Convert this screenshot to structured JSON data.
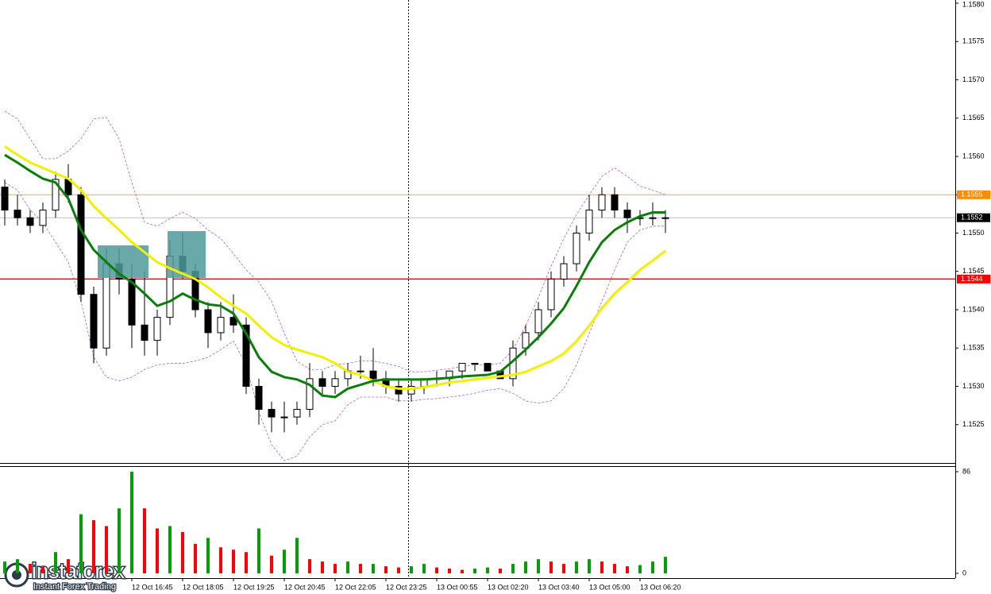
{
  "chart_data": {
    "type": "candlestick",
    "categories": [
      null,
      null,
      null,
      null,
      null,
      null,
      null,
      null,
      null,
      null,
      "12 Oct 16:45",
      null,
      null,
      null,
      "12 Oct 18:05",
      null,
      null,
      null,
      "12 Oct 19:25",
      null,
      null,
      null,
      "12 Oct 20:45",
      null,
      null,
      null,
      "12 Oct 22:05",
      null,
      null,
      null,
      "12 Oct 23:25",
      null,
      null,
      null,
      "13 Oct 00:55",
      null,
      null,
      null,
      "13 Oct 02:20",
      null,
      null,
      null,
      "13 Oct 03:40",
      null,
      null,
      null,
      "13 Oct 05:00",
      null,
      null,
      null,
      "13 Oct 06:20",
      null,
      null
    ],
    "open": [
      1.1556,
      1.1553,
      1.1552,
      1.1551,
      1.1553,
      1.1557,
      1.1555,
      1.1542,
      1.1535,
      1.1546,
      1.1544,
      1.1538,
      1.1536,
      1.1539,
      1.1547,
      1.1545,
      1.154,
      1.1537,
      1.1539,
      1.1538,
      1.153,
      1.1527,
      1.1526,
      1.1526,
      1.1527,
      1.1531,
      1.153,
      1.1531,
      1.1532,
      1.1532,
      1.1531,
      1.153,
      1.1529,
      1.153,
      1.1531,
      1.1531,
      1.1532,
      1.1533,
      1.1533,
      1.1532,
      1.1531,
      1.1535,
      1.1537,
      1.154,
      1.1544,
      1.1546,
      1.155,
      1.1553,
      1.1555,
      1.1553,
      1.1552,
      1.1552,
      1.1552
    ],
    "high": [
      1.1557,
      1.1555,
      1.1553,
      1.1554,
      1.1558,
      1.1559,
      1.1556,
      1.1543,
      1.1548,
      1.1548,
      1.1546,
      1.1545,
      1.154,
      1.1549,
      1.155,
      1.1546,
      1.1541,
      1.1541,
      1.1542,
      1.1539,
      1.1531,
      1.1528,
      1.1528,
      1.1528,
      1.1533,
      1.1532,
      1.1532,
      1.1533,
      1.1534,
      1.1535,
      1.1532,
      1.1531,
      1.1531,
      1.1531,
      1.1532,
      1.1532,
      1.1533,
      1.1533,
      1.1533,
      1.1532,
      1.1536,
      1.1538,
      1.1541,
      1.1545,
      1.1547,
      1.1551,
      1.1555,
      1.1556,
      1.1556,
      1.1554,
      1.1553,
      1.1554,
      1.1553
    ],
    "low": [
      1.1551,
      1.1551,
      1.155,
      1.155,
      1.1552,
      1.1554,
      1.1541,
      1.1533,
      1.1534,
      1.1542,
      1.1535,
      1.1534,
      1.1534,
      1.1538,
      1.1544,
      1.1539,
      1.1535,
      1.1536,
      1.1537,
      1.1529,
      1.1525,
      1.1524,
      1.1524,
      1.1525,
      1.1526,
      1.1529,
      1.1529,
      1.153,
      1.1531,
      1.153,
      1.1529,
      1.1528,
      1.1528,
      1.1529,
      1.153,
      1.153,
      1.1531,
      1.1532,
      1.1532,
      1.1531,
      1.153,
      1.1534,
      1.1536,
      1.1539,
      1.1543,
      1.1545,
      1.1549,
      1.1552,
      1.1552,
      1.155,
      1.1551,
      1.1551,
      1.155
    ],
    "close": [
      1.1553,
      1.1552,
      1.1551,
      1.1553,
      1.1557,
      1.1555,
      1.1542,
      1.1535,
      1.1546,
      1.1544,
      1.1538,
      1.1536,
      1.1539,
      1.1547,
      1.1545,
      1.154,
      1.1537,
      1.1539,
      1.1538,
      1.153,
      1.1527,
      1.1526,
      1.1526,
      1.1527,
      1.1531,
      1.153,
      1.1531,
      1.1532,
      1.1532,
      1.1531,
      1.153,
      1.1529,
      1.153,
      1.1531,
      1.1531,
      1.1532,
      1.1533,
      1.1533,
      1.1532,
      1.1531,
      1.1535,
      1.1537,
      1.154,
      1.1544,
      1.1546,
      1.155,
      1.1553,
      1.1555,
      1.1553,
      1.1552,
      1.1552,
      1.1552,
      1.1552
    ],
    "up_fill": "#ffffff",
    "down_fill": "#000000",
    "candle_stroke": "#000000",
    "lines": [
      {
        "color": "#b060d0",
        "dashed": true,
        "width": 0.8,
        "values": [
          1.15659,
          1.15649,
          1.15623,
          1.15597,
          1.15597,
          1.15607,
          1.15623,
          1.15649,
          1.15651,
          1.15623,
          1.15566,
          1.15514,
          1.15509,
          1.15519,
          1.15527,
          1.15519,
          1.15504,
          1.15493,
          1.15473,
          1.15452,
          1.15436,
          1.15411,
          1.15369,
          1.15333,
          1.15322,
          1.15322,
          1.15328,
          1.1533,
          1.15333,
          1.15333,
          1.1533,
          1.15326,
          1.15319,
          1.15319,
          1.15321,
          1.15323,
          1.15326,
          1.15328,
          1.15328,
          1.1533,
          1.15348,
          1.15379,
          1.15416,
          1.15457,
          1.15493,
          1.15524,
          1.1555,
          1.15574,
          1.15585,
          1.15574,
          1.15561,
          1.15556,
          1.1555
        ]
      },
      {
        "color": "#b060d0",
        "dashed": true,
        "width": 0.8,
        "values": [
          1.15566,
          1.15556,
          1.1553,
          1.15514,
          1.15488,
          1.15462,
          1.15411,
          1.15338,
          1.15312,
          1.15307,
          1.15312,
          1.15322,
          1.15328,
          1.1533,
          1.1533,
          1.15333,
          1.15338,
          1.15348,
          1.15359,
          1.15328,
          1.15266,
          1.15224,
          1.15203,
          1.15209,
          1.15234,
          1.1525,
          1.15255,
          1.15276,
          1.15286,
          1.15286,
          1.15286,
          1.15281,
          1.15281,
          1.15283,
          1.15284,
          1.15286,
          1.15288,
          1.15291,
          1.15295,
          1.15297,
          1.15291,
          1.15281,
          1.15278,
          1.15281,
          1.15297,
          1.15328,
          1.15369,
          1.15411,
          1.15452,
          1.15488,
          1.15504,
          1.15509,
          1.15509
        ]
      },
      {
        "color": "#f0f000",
        "dashed": false,
        "width": 3,
        "values": [
          1.15613,
          1.15602,
          1.15592,
          1.15585,
          1.15578,
          1.15571,
          1.15556,
          1.15535,
          1.15519,
          1.15504,
          1.15488,
          1.15475,
          1.15462,
          1.15454,
          1.15447,
          1.1544,
          1.15429,
          1.15416,
          1.15405,
          1.15395,
          1.15379,
          1.15364,
          1.15354,
          1.15348,
          1.15343,
          1.15338,
          1.1533,
          1.15319,
          1.15315,
          1.15307,
          1.153,
          1.15297,
          1.15297,
          1.15299,
          1.15302,
          1.15305,
          1.15307,
          1.15309,
          1.15311,
          1.15313,
          1.15315,
          1.15319,
          1.15326,
          1.15333,
          1.15343,
          1.15359,
          1.15379,
          1.15402,
          1.15421,
          1.15436,
          1.15452,
          1.15464,
          1.15477
        ]
      },
      {
        "color": "#0a7d0a",
        "dashed": false,
        "width": 3,
        "values": [
          1.15602,
          1.15592,
          1.15581,
          1.15571,
          1.15566,
          1.15545,
          1.15504,
          1.15478,
          1.15462,
          1.15447,
          1.15436,
          1.15421,
          1.15405,
          1.15411,
          1.15421,
          1.15413,
          1.15407,
          1.15405,
          1.15395,
          1.15369,
          1.15338,
          1.15319,
          1.15312,
          1.15309,
          1.15302,
          1.15288,
          1.15286,
          1.15297,
          1.15302,
          1.15307,
          1.15309,
          1.15309,
          1.15309,
          1.15309,
          1.1531,
          1.15311,
          1.15313,
          1.15314,
          1.15315,
          1.15319,
          1.15333,
          1.15348,
          1.15364,
          1.15382,
          1.15402,
          1.15431,
          1.15462,
          1.15488,
          1.15504,
          1.15514,
          1.15522,
          1.15527,
          1.15527
        ]
      }
    ],
    "ylim": [
      1.152,
      1.158
    ],
    "yticks": [
      {
        "value": 1.158,
        "label": "1.1580"
      },
      1.1575,
      {
        "value": 1.157,
        "label": "1.1570"
      },
      1.1565,
      {
        "value": 1.156,
        "label": "1.1560"
      },
      1.1555,
      {
        "value": 1.155,
        "label": "1.1550"
      },
      1.1545,
      {
        "value": 1.154,
        "label": "1.1540"
      },
      1.1535,
      {
        "value": 1.153,
        "label": "1.1530"
      },
      1.1525
    ],
    "levels": [
      {
        "value": 1.1555,
        "color": "#f4a460",
        "box_color": "#ff8c00"
      },
      {
        "value": 1.1552,
        "color": "#c0c0c0",
        "box_color": "#000000"
      },
      {
        "value": 1.1544,
        "color": "#ff0000",
        "box_color": "#ff0000"
      }
    ],
    "volume": {
      "values": [
        10,
        12,
        8,
        6,
        18,
        12,
        50,
        45,
        40,
        55,
        86,
        55,
        38,
        40,
        35,
        25,
        30,
        22,
        20,
        18,
        38,
        15,
        20,
        30,
        12,
        10,
        8,
        10,
        8,
        8,
        6,
        5,
        6,
        8,
        5,
        4,
        3,
        4,
        5,
        4,
        8,
        10,
        12,
        10,
        8,
        10,
        12,
        10,
        8,
        6,
        7,
        10,
        14
      ],
      "up_color": "#00a000",
      "down_color": "#ff0000",
      "ylim": [
        0,
        86
      ],
      "yticks": [
        86,
        0
      ]
    }
  },
  "logo": {
    "name": "instaforex",
    "tagline": "Instant Forex Trading"
  }
}
